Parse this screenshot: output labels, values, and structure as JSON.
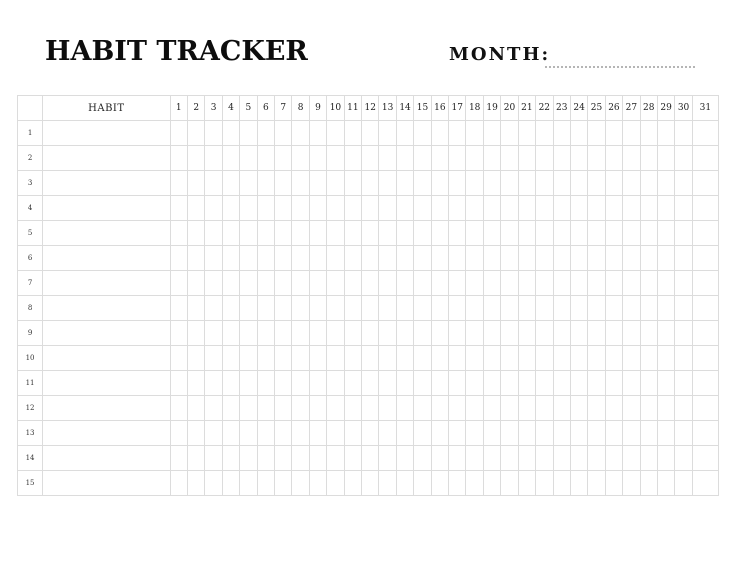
{
  "header": {
    "title": "HABIT TRACKER",
    "month_label": "MONTH:"
  },
  "table": {
    "habit_header": "HABIT",
    "days": [
      "1",
      "2",
      "3",
      "4",
      "5",
      "6",
      "7",
      "8",
      "9",
      "10",
      "11",
      "12",
      "13",
      "14",
      "15",
      "16",
      "17",
      "18",
      "19",
      "20",
      "21",
      "22",
      "23",
      "24",
      "25",
      "26",
      "27",
      "28",
      "29",
      "30",
      "31"
    ],
    "rows": [
      "1",
      "2",
      "3",
      "4",
      "5",
      "6",
      "7",
      "8",
      "9",
      "10",
      "11",
      "12",
      "13",
      "14",
      "15"
    ]
  }
}
